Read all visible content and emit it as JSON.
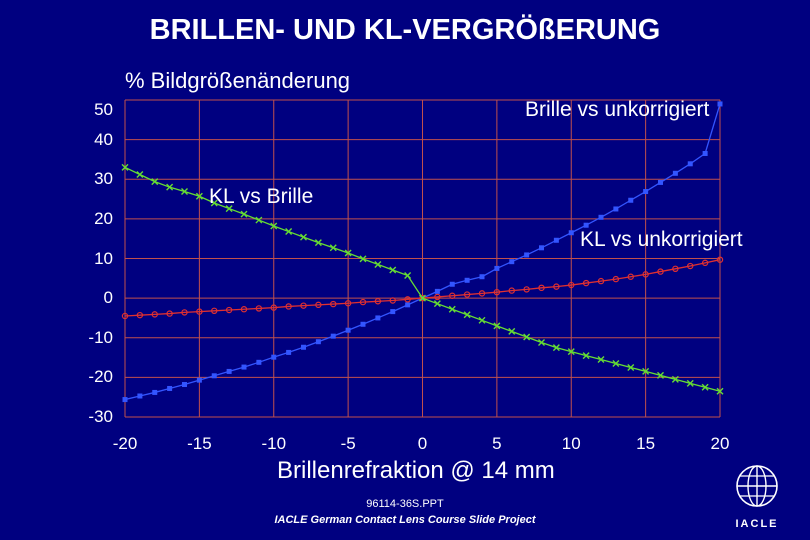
{
  "title": "BRILLEN- UND KL-VERGRÖßERUNG",
  "footer": {
    "code": "96114-36S.PPT",
    "project": "IACLE German Contact Lens Course Slide Project",
    "logo_text": "IACLE"
  },
  "logo": {
    "icon": "globe-icon"
  },
  "colors": {
    "background": "#000080",
    "grid": "#c0504d",
    "blue": "#3355ff",
    "red": "#e03030",
    "green": "#66dd33"
  },
  "chart_data": {
    "type": "line",
    "xlabel": "Brillenrefraktion @ 14 mm",
    "ylabel": "% Bildgrößenänderung",
    "xlim": [
      -20,
      20
    ],
    "ylim": [
      -30,
      50
    ],
    "x_ticks": [
      "-20",
      "-15",
      "-10",
      "-5",
      "0",
      "5",
      "10",
      "15",
      "20"
    ],
    "y_ticks": [
      "50",
      "40",
      "30",
      "20",
      "10",
      "0",
      "-10",
      "-20",
      "-30"
    ],
    "grid": true,
    "x": [
      -20,
      -19,
      -18,
      -17,
      -16,
      -15,
      -14,
      -13,
      -12,
      -11,
      -10,
      -9,
      -8,
      -7,
      -6,
      -5,
      -4,
      -3,
      -2,
      -1,
      0,
      1,
      2,
      3,
      4,
      5,
      6,
      7,
      8,
      9,
      10,
      11,
      12,
      13,
      14,
      15,
      16,
      17,
      18,
      19,
      20
    ],
    "series": [
      {
        "name": "Brille vs unkorrigiert",
        "color": "#3355ff",
        "marker": "square",
        "values": [
          -25.6,
          -24.7,
          -23.8,
          -22.8,
          -21.8,
          -20.7,
          -19.6,
          -18.5,
          -17.4,
          -16.2,
          -14.9,
          -13.7,
          -12.4,
          -11.0,
          -9.6,
          -8.1,
          -6.6,
          -5.0,
          -3.4,
          -1.7,
          0.0,
          1.7,
          3.5,
          4.5,
          5.4,
          7.5,
          9.2,
          10.9,
          12.7,
          14.6,
          16.5,
          18.4,
          20.4,
          22.5,
          24.7,
          26.9,
          29.2,
          31.5,
          33.9,
          36.5,
          49.0
        ]
      },
      {
        "name": "KL vs unkorrigiert",
        "color": "#e03030",
        "marker": "circle",
        "values": [
          -4.5,
          -4.3,
          -4.1,
          -3.9,
          -3.6,
          -3.4,
          -3.2,
          -3.0,
          -2.8,
          -2.6,
          -2.4,
          -2.1,
          -1.9,
          -1.7,
          -1.5,
          -1.3,
          -1.0,
          -0.8,
          -0.6,
          -0.3,
          0.0,
          0.3,
          0.6,
          0.9,
          1.2,
          1.5,
          1.9,
          2.2,
          2.6,
          2.9,
          3.3,
          3.8,
          4.3,
          4.8,
          5.4,
          6.0,
          6.7,
          7.4,
          8.1,
          8.9,
          9.7
        ]
      },
      {
        "name": "KL vs Brille",
        "color": "#66dd33",
        "marker": "x",
        "values": [
          33.0,
          31.2,
          29.4,
          28.0,
          26.9,
          25.7,
          24.0,
          22.6,
          21.2,
          19.7,
          18.2,
          16.8,
          15.4,
          14.0,
          12.7,
          11.4,
          9.9,
          8.5,
          7.1,
          5.7,
          0.0,
          -1.4,
          -2.8,
          -4.2,
          -5.6,
          -7.0,
          -8.4,
          -9.8,
          -11.2,
          -12.5,
          -13.5,
          -14.5,
          -15.5,
          -16.5,
          -17.5,
          -18.5,
          -19.5,
          -20.5,
          -21.5,
          -22.5,
          -23.5
        ]
      }
    ],
    "annotations": [
      "Brille vs unkorrigiert",
      "KL vs Brille",
      "KL vs unkorrigiert"
    ]
  }
}
